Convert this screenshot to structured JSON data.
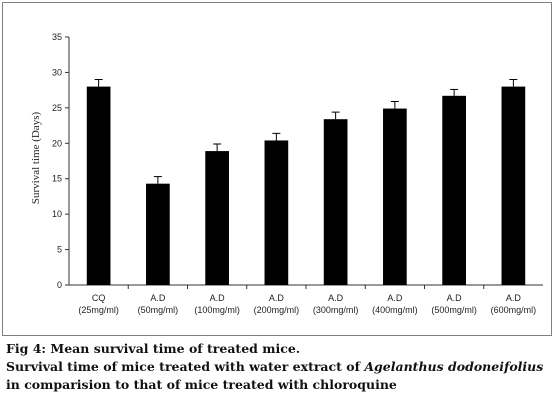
{
  "chart_data": {
    "type": "bar",
    "categories": [
      [
        "CQ",
        "(25mg/ml)"
      ],
      [
        "A.D",
        "(50mg/ml)"
      ],
      [
        "A.D",
        "(100mg/ml)"
      ],
      [
        "A.D",
        "(200mg/ml)"
      ],
      [
        "A.D",
        "(300mg/ml)"
      ],
      [
        "A.D",
        "(400mg/ml)"
      ],
      [
        "A.D",
        "(500mg/ml)"
      ],
      [
        "A.D",
        "(600mg/ml)"
      ]
    ],
    "values": [
      28.0,
      14.3,
      18.9,
      20.4,
      23.4,
      24.9,
      26.7,
      28.0
    ],
    "errors": [
      1.0,
      1.0,
      1.0,
      1.0,
      1.0,
      1.0,
      0.9,
      1.0
    ],
    "ylabel": "Survival time (Days)",
    "xlabel": "",
    "ylim": [
      0,
      35
    ],
    "yticks": [
      0,
      5,
      10,
      15,
      20,
      25,
      30,
      35
    ],
    "bar_color": "#000000",
    "grid": false
  },
  "caption": {
    "fig_label": "Fig 4:",
    "fig_title": " Mean survival time of treated mice.",
    "line2_prefix": "Survival time of mice treated with water extract of ",
    "species": "Agelanthus dodoneifolius",
    "line2_suffix": " in comparision to that of mice treated with chloroquine"
  }
}
